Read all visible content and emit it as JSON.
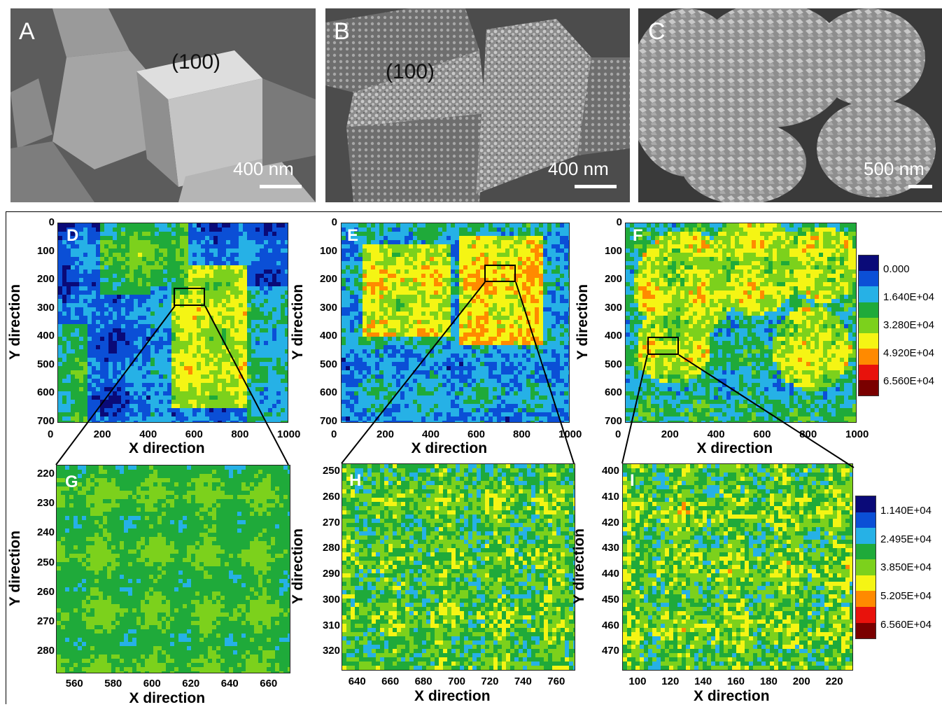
{
  "sem_panels": [
    {
      "label": "A",
      "scale": "400 nm",
      "facet": "(100)"
    },
    {
      "label": "B",
      "scale": "400 nm",
      "facet": "(100)"
    },
    {
      "label": "C",
      "scale": "500 nm",
      "facet": ""
    }
  ],
  "maps": [
    {
      "label": "D",
      "xlabel": "X direction",
      "ylabel": "Y direction",
      "xticks": [
        "0",
        "200",
        "400",
        "600",
        "800",
        "1000"
      ],
      "yticks": [
        "0",
        "100",
        "200",
        "300",
        "400",
        "500",
        "600",
        "700"
      ]
    },
    {
      "label": "E",
      "xlabel": "X direction",
      "ylabel": "Y direction",
      "xticks": [
        "0",
        "200",
        "400",
        "600",
        "800",
        "1000"
      ],
      "yticks": [
        "0",
        "100",
        "200",
        "300",
        "400",
        "500",
        "600",
        "700"
      ]
    },
    {
      "label": "F",
      "xlabel": "X direction",
      "ylabel": "Y direction",
      "xticks": [
        "0",
        "200",
        "400",
        "600",
        "800",
        "1000"
      ],
      "yticks": [
        "0",
        "100",
        "200",
        "300",
        "400",
        "500",
        "600",
        "700"
      ]
    },
    {
      "label": "G",
      "xlabel": "X direction",
      "ylabel": "Y direction",
      "xticks": [
        "560",
        "580",
        "600",
        "620",
        "640",
        "660"
      ],
      "yticks": [
        "220",
        "230",
        "240",
        "250",
        "260",
        "270",
        "280"
      ]
    },
    {
      "label": "H",
      "xlabel": "X direction",
      "ylabel": "Y direction",
      "xticks": [
        "640",
        "660",
        "680",
        "700",
        "720",
        "740",
        "760"
      ],
      "yticks": [
        "250",
        "260",
        "270",
        "280",
        "290",
        "300",
        "310",
        "320"
      ]
    },
    {
      "label": "I",
      "xlabel": "X direction",
      "ylabel": "Y direction",
      "xticks": [
        "100",
        "120",
        "140",
        "160",
        "180",
        "200",
        "220"
      ],
      "yticks": [
        "400",
        "410",
        "420",
        "430",
        "440",
        "450",
        "460",
        "470"
      ]
    }
  ],
  "legend_top": {
    "labels": [
      "0.000",
      "1.640E+04",
      "3.280E+04",
      "4.920E+04",
      "6.560E+04"
    ],
    "colors": [
      "#0a0a78",
      "#0b4fd6",
      "#26b1e6",
      "#1faa3a",
      "#7cd11c",
      "#f5f514",
      "#ff8a00",
      "#e8120c",
      "#7a0000"
    ]
  },
  "legend_bottom": {
    "labels": [
      "1.140E+04",
      "2.495E+04",
      "3.850E+04",
      "5.205E+04",
      "6.560E+04"
    ],
    "colors": [
      "#0a0a78",
      "#0b4fd6",
      "#26b1e6",
      "#1faa3a",
      "#7cd11c",
      "#f5f514",
      "#ff8a00",
      "#e8120c",
      "#7a0000"
    ]
  },
  "chart_data": [
    {
      "type": "heatmap",
      "panel": "D",
      "xlabel": "X direction",
      "ylabel": "Y direction",
      "xlim": [
        0,
        1000
      ],
      "ylim": [
        700,
        0
      ],
      "zlim": [
        0,
        65600
      ],
      "zoom_box": {
        "x": [
          520,
          660
        ],
        "y": [
          230,
          300
        ]
      }
    },
    {
      "type": "heatmap",
      "panel": "E",
      "xlabel": "X direction",
      "ylabel": "Y direction",
      "xlim": [
        0,
        1000
      ],
      "ylim": [
        700,
        0
      ],
      "zlim": [
        0,
        65600
      ],
      "zoom_box": {
        "x": [
          640,
          780
        ],
        "y": [
          140,
          210
        ]
      }
    },
    {
      "type": "heatmap",
      "panel": "F",
      "xlabel": "X direction",
      "ylabel": "Y direction",
      "xlim": [
        0,
        1000
      ],
      "ylim": [
        700,
        0
      ],
      "zlim": [
        0,
        65600
      ],
      "zoom_box": {
        "x": [
          90,
          230
        ],
        "y": [
          400,
          470
        ]
      }
    },
    {
      "type": "heatmap",
      "panel": "G",
      "xlabel": "X direction",
      "ylabel": "Y direction",
      "xlim": [
        550,
        670
      ],
      "ylim": [
        290,
        215
      ],
      "zlim": [
        11400,
        65600
      ]
    },
    {
      "type": "heatmap",
      "panel": "H",
      "xlabel": "X direction",
      "ylabel": "Y direction",
      "xlim": [
        637,
        780
      ],
      "ylim": [
        325,
        246
      ],
      "zlim": [
        11400,
        65600
      ]
    },
    {
      "type": "heatmap",
      "panel": "I",
      "xlabel": "X direction",
      "ylabel": "Y direction",
      "xlim": [
        87,
        230
      ],
      "ylim": [
        475,
        395
      ],
      "zlim": [
        11400,
        65600
      ]
    }
  ]
}
